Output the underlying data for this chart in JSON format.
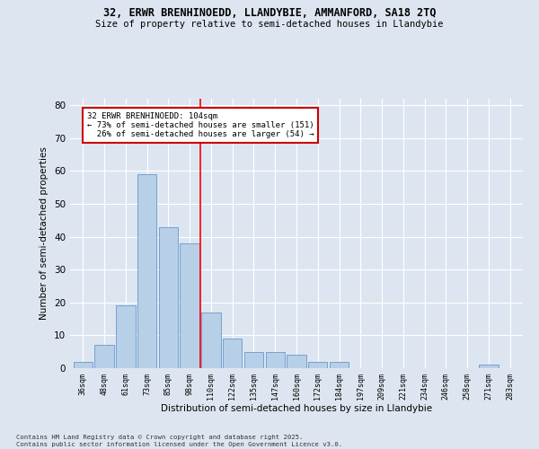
{
  "title_line1": "32, ERWR BRENHINOEDD, LLANDYBIE, AMMANFORD, SA18 2TQ",
  "title_line2": "Size of property relative to semi-detached houses in Llandybie",
  "xlabel": "Distribution of semi-detached houses by size in Llandybie",
  "ylabel": "Number of semi-detached properties",
  "categories": [
    "36sqm",
    "48sqm",
    "61sqm",
    "73sqm",
    "85sqm",
    "98sqm",
    "110sqm",
    "122sqm",
    "135sqm",
    "147sqm",
    "160sqm",
    "172sqm",
    "184sqm",
    "197sqm",
    "209sqm",
    "221sqm",
    "234sqm",
    "246sqm",
    "258sqm",
    "271sqm",
    "283sqm"
  ],
  "values": [
    2,
    7,
    19,
    59,
    43,
    38,
    17,
    9,
    5,
    5,
    4,
    2,
    2,
    0,
    0,
    0,
    0,
    0,
    0,
    1,
    0
  ],
  "bar_color": "#b8cfe8",
  "bar_edge_color": "#6699cc",
  "vline_x_index": 5.5,
  "annotation_box_color": "#ffffff",
  "annotation_box_edge": "#cc0000",
  "property_label": "32 ERWR BRENHINOEDD: 104sqm",
  "pct_smaller": 73,
  "n_smaller": 151,
  "pct_larger": 26,
  "n_larger": 54,
  "background_color": "#dde6f0",
  "grid_color": "#ffffff",
  "ylim": [
    0,
    82
  ],
  "yticks": [
    0,
    10,
    20,
    30,
    40,
    50,
    60,
    70,
    80
  ],
  "footer_line1": "Contains HM Land Registry data © Crown copyright and database right 2025.",
  "footer_line2": "Contains public sector information licensed under the Open Government Licence v3.0."
}
